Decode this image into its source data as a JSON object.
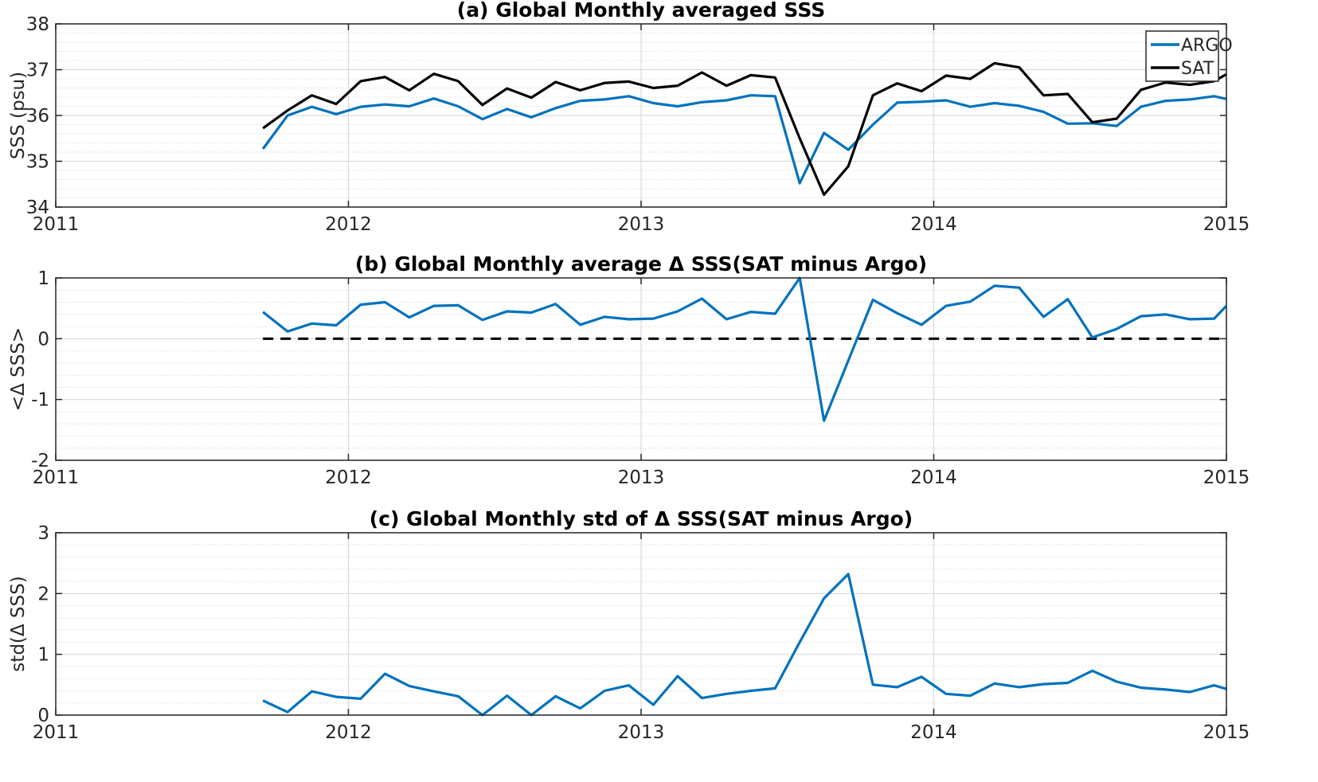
{
  "figure": {
    "background": "#ffffff",
    "grid_color": "#d9d9d9",
    "axis_color": "#262626"
  },
  "chart_data": [
    {
      "type": "line",
      "title": "(a) Global Monthly averaged SSS",
      "xlabel": "",
      "ylabel": "SSS (psu)",
      "xlim": [
        2011,
        2015
      ],
      "ylim": [
        34,
        38
      ],
      "xticks": [
        "2011",
        "2012",
        "2013",
        "2014",
        "2015"
      ],
      "yticks": [
        "34",
        "35",
        "36",
        "37",
        "38"
      ],
      "grid": true,
      "minor_grid": true,
      "legend": {
        "placement": "top-right",
        "entries": [
          "ARGO",
          "SAT"
        ]
      },
      "x": [
        2011.708,
        2011.792,
        2011.875,
        2011.958,
        2012.042,
        2012.125,
        2012.208,
        2012.292,
        2012.375,
        2012.458,
        2012.542,
        2012.625,
        2012.708,
        2012.792,
        2012.875,
        2012.958,
        2013.042,
        2013.125,
        2013.208,
        2013.292,
        2013.375,
        2013.458,
        2013.542,
        2013.625,
        2013.708,
        2013.792,
        2013.875,
        2013.958,
        2014.042,
        2014.125,
        2014.208,
        2014.292,
        2014.375,
        2014.458,
        2014.542,
        2014.625,
        2014.708,
        2014.792,
        2014.875,
        2014.958,
        2015.0
      ],
      "series": [
        {
          "name": "ARGO",
          "color": "#0072bd",
          "values": [
            35.27,
            36.0,
            36.19,
            36.03,
            36.19,
            36.24,
            36.2,
            36.37,
            36.2,
            35.92,
            36.14,
            35.96,
            36.16,
            36.32,
            36.35,
            36.42,
            36.27,
            36.2,
            36.29,
            36.33,
            36.44,
            36.42,
            34.52,
            35.62,
            35.25,
            35.8,
            36.28,
            36.3,
            36.33,
            36.19,
            36.27,
            36.21,
            36.08,
            35.82,
            35.83,
            35.77,
            36.19,
            36.32,
            36.35,
            36.42,
            36.36
          ]
        },
        {
          "name": "SAT",
          "color": "#000000",
          "values": [
            35.72,
            36.11,
            36.44,
            36.25,
            36.75,
            36.84,
            36.55,
            36.91,
            36.75,
            36.23,
            36.59,
            36.39,
            36.73,
            36.55,
            36.71,
            36.74,
            36.6,
            36.65,
            36.94,
            36.65,
            36.88,
            36.83,
            35.5,
            34.27,
            34.89,
            36.44,
            36.7,
            36.53,
            36.87,
            36.8,
            37.14,
            37.05,
            36.44,
            36.47,
            35.85,
            35.93,
            36.56,
            36.72,
            36.67,
            36.75,
            36.9
          ]
        }
      ]
    },
    {
      "type": "line",
      "title": "(b) Global Monthly average Δ SSS(SAT minus Argo)",
      "xlabel": "",
      "ylabel": "<Δ SSS>",
      "xlim": [
        2011,
        2015
      ],
      "ylim": [
        -2,
        1
      ],
      "xticks": [
        "2011",
        "2012",
        "2013",
        "2014",
        "2015"
      ],
      "yticks": [
        "-2",
        "-1",
        "0",
        "1"
      ],
      "grid": true,
      "minor_grid": true,
      "reference_line": {
        "y": 0,
        "style": "dashed",
        "color": "#000000",
        "x_from": 2011.708,
        "x_to": 2015.0
      },
      "x": [
        2011.708,
        2011.792,
        2011.875,
        2011.958,
        2012.042,
        2012.125,
        2012.208,
        2012.292,
        2012.375,
        2012.458,
        2012.542,
        2012.625,
        2012.708,
        2012.792,
        2012.875,
        2012.958,
        2013.042,
        2013.125,
        2013.208,
        2013.292,
        2013.375,
        2013.458,
        2013.542,
        2013.625,
        2013.708,
        2013.792,
        2013.875,
        2013.958,
        2014.042,
        2014.125,
        2014.208,
        2014.292,
        2014.375,
        2014.458,
        2014.542,
        2014.625,
        2014.708,
        2014.792,
        2014.875,
        2014.958,
        2015.0
      ],
      "series": [
        {
          "color": "#0072bd",
          "values": [
            0.44,
            0.12,
            0.25,
            0.22,
            0.56,
            0.6,
            0.35,
            0.54,
            0.55,
            0.31,
            0.45,
            0.43,
            0.57,
            0.23,
            0.36,
            0.32,
            0.33,
            0.45,
            0.66,
            0.32,
            0.44,
            0.41,
            1.0,
            -1.35,
            -0.36,
            0.64,
            0.42,
            0.23,
            0.54,
            0.61,
            0.87,
            0.84,
            0.36,
            0.65,
            0.02,
            0.16,
            0.37,
            0.4,
            0.32,
            0.33,
            0.54
          ]
        }
      ]
    },
    {
      "type": "line",
      "title": "(c) Global Monthly std of Δ SSS(SAT minus Argo)",
      "xlabel": "",
      "ylabel": "std(Δ SSS)",
      "xlim": [
        2011,
        2015
      ],
      "ylim": [
        0,
        3
      ],
      "xticks": [
        "2011",
        "2012",
        "2013",
        "2014",
        "2015"
      ],
      "yticks": [
        "0",
        "1",
        "2",
        "3"
      ],
      "grid": true,
      "minor_grid": true,
      "x": [
        2011.708,
        2011.792,
        2011.875,
        2011.958,
        2012.042,
        2012.125,
        2012.208,
        2012.292,
        2012.375,
        2012.458,
        2012.542,
        2012.625,
        2012.708,
        2012.792,
        2012.875,
        2012.958,
        2013.042,
        2013.125,
        2013.208,
        2013.292,
        2013.375,
        2013.458,
        2013.542,
        2013.625,
        2013.708,
        2013.792,
        2013.875,
        2013.958,
        2014.042,
        2014.125,
        2014.208,
        2014.292,
        2014.375,
        2014.458,
        2014.542,
        2014.625,
        2014.708,
        2014.792,
        2014.875,
        2014.958,
        2015.0
      ],
      "series": [
        {
          "color": "#0072bd",
          "values": [
            0.24,
            0.05,
            0.39,
            0.3,
            0.27,
            0.68,
            0.48,
            0.39,
            0.31,
            0.0,
            0.32,
            0.0,
            0.31,
            0.11,
            0.4,
            0.49,
            0.17,
            0.64,
            0.28,
            0.35,
            0.4,
            0.44,
            1.2,
            1.92,
            2.32,
            0.5,
            0.46,
            0.63,
            0.35,
            0.32,
            0.52,
            0.46,
            0.51,
            0.53,
            0.73,
            0.55,
            0.45,
            0.42,
            0.38,
            0.49,
            0.43
          ]
        }
      ]
    }
  ]
}
